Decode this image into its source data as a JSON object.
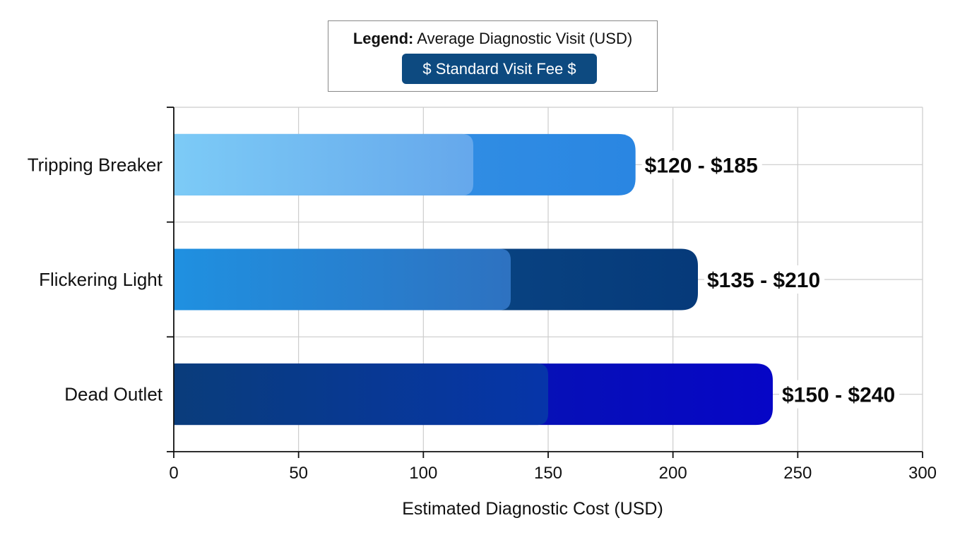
{
  "legend": {
    "prefix": "Legend:",
    "text": "Average Diagnostic Visit (USD)",
    "chip_label": "$ Standard Visit Fee $",
    "chip_color": "#0d4a80"
  },
  "chart_data": {
    "type": "bar",
    "orientation": "horizontal",
    "categories": [
      "Tripping Breaker",
      "Flickering Light",
      "Dead Outlet"
    ],
    "series": [
      {
        "name": "Low estimate",
        "values": [
          120,
          135,
          150
        ]
      },
      {
        "name": "High estimate",
        "values": [
          185,
          210,
          240
        ]
      }
    ],
    "data_labels": [
      "$120 - $185",
      "$135 - $210",
      "$150 - $240"
    ],
    "xlabel": "Estimated Diagnostic Cost (USD)",
    "ylabel": "",
    "xlim": [
      0,
      300
    ],
    "xticks": [
      0,
      50,
      100,
      150,
      200,
      250,
      300
    ],
    "grid": true,
    "legend_position": "top-center",
    "bar_colors": [
      {
        "low_start": "#82cff8",
        "low_end": "#6aaaec",
        "high_start": "#3a98e6",
        "high_end": "#2a86e2"
      },
      {
        "low_start": "#2196e8",
        "low_end": "#3176c6",
        "high_start": "#0c4f8c",
        "high_end": "#063a7a"
      },
      {
        "low_start": "#0a3f78",
        "low_end": "#0638a8",
        "high_start": "#05209e",
        "high_end": "#0606c6"
      }
    ],
    "grid_color": "#cccccc",
    "axis_color": "#111111"
  }
}
